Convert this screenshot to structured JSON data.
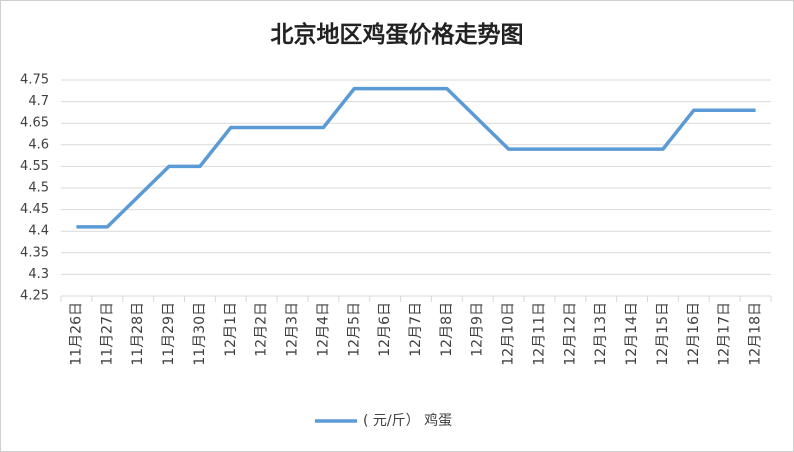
{
  "chart_data": {
    "type": "line",
    "title": "北京地区鸡蛋价格走势图",
    "categories": [
      "11月26日",
      "11月27日",
      "11月28日",
      "11月29日",
      "11月30日",
      "12月1日",
      "12月2日",
      "12月3日",
      "12月4日",
      "12月5日",
      "12月6日",
      "12月7日",
      "12月8日",
      "12月9日",
      "12月10日",
      "12月11日",
      "12月12日",
      "12月13日",
      "12月14日",
      "12月15日",
      "12月16日",
      "12月17日",
      "12月18日"
    ],
    "series": [
      {
        "name": "( 元/斤） 鸡蛋",
        "color": "#5b9bd5",
        "values": [
          4.41,
          4.41,
          4.48,
          4.55,
          4.55,
          4.64,
          4.64,
          4.64,
          4.64,
          4.73,
          4.73,
          4.73,
          4.73,
          4.66,
          4.59,
          4.59,
          4.59,
          4.59,
          4.59,
          4.59,
          4.68,
          4.68,
          4.68
        ]
      }
    ],
    "ylim": [
      4.25,
      4.75
    ],
    "yticks": [
      4.25,
      4.3,
      4.35,
      4.4,
      4.45,
      4.5,
      4.55,
      4.6,
      4.65,
      4.7,
      4.75
    ],
    "grid": true,
    "legend": "bottom"
  }
}
